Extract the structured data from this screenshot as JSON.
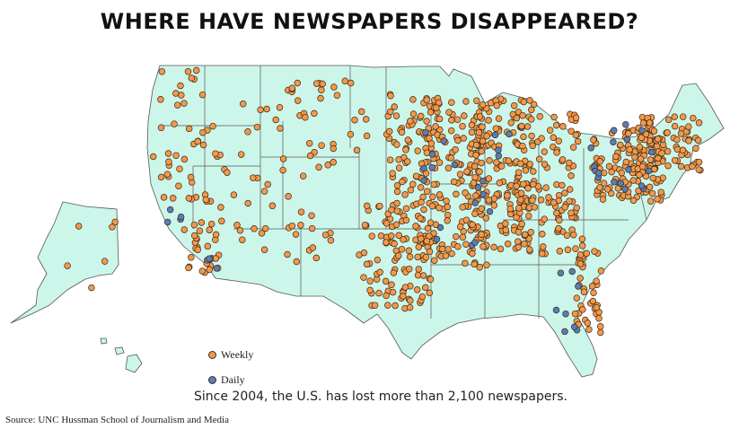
{
  "title": "WHERE HAVE NEWSPAPERS DISAPPEARED?",
  "subtitle": "Since 2004, the U.S. has lost more than 2,100 newspapers.",
  "source": "Source: UNC Hussman School of Journalism and Media",
  "legend": {
    "weekly_label": "Weekly",
    "daily_label": "Daily"
  },
  "colors": {
    "land": "#cdf6ea",
    "border": "#555555",
    "weekly": "#f2994a",
    "daily": "#5b7db3"
  }
}
